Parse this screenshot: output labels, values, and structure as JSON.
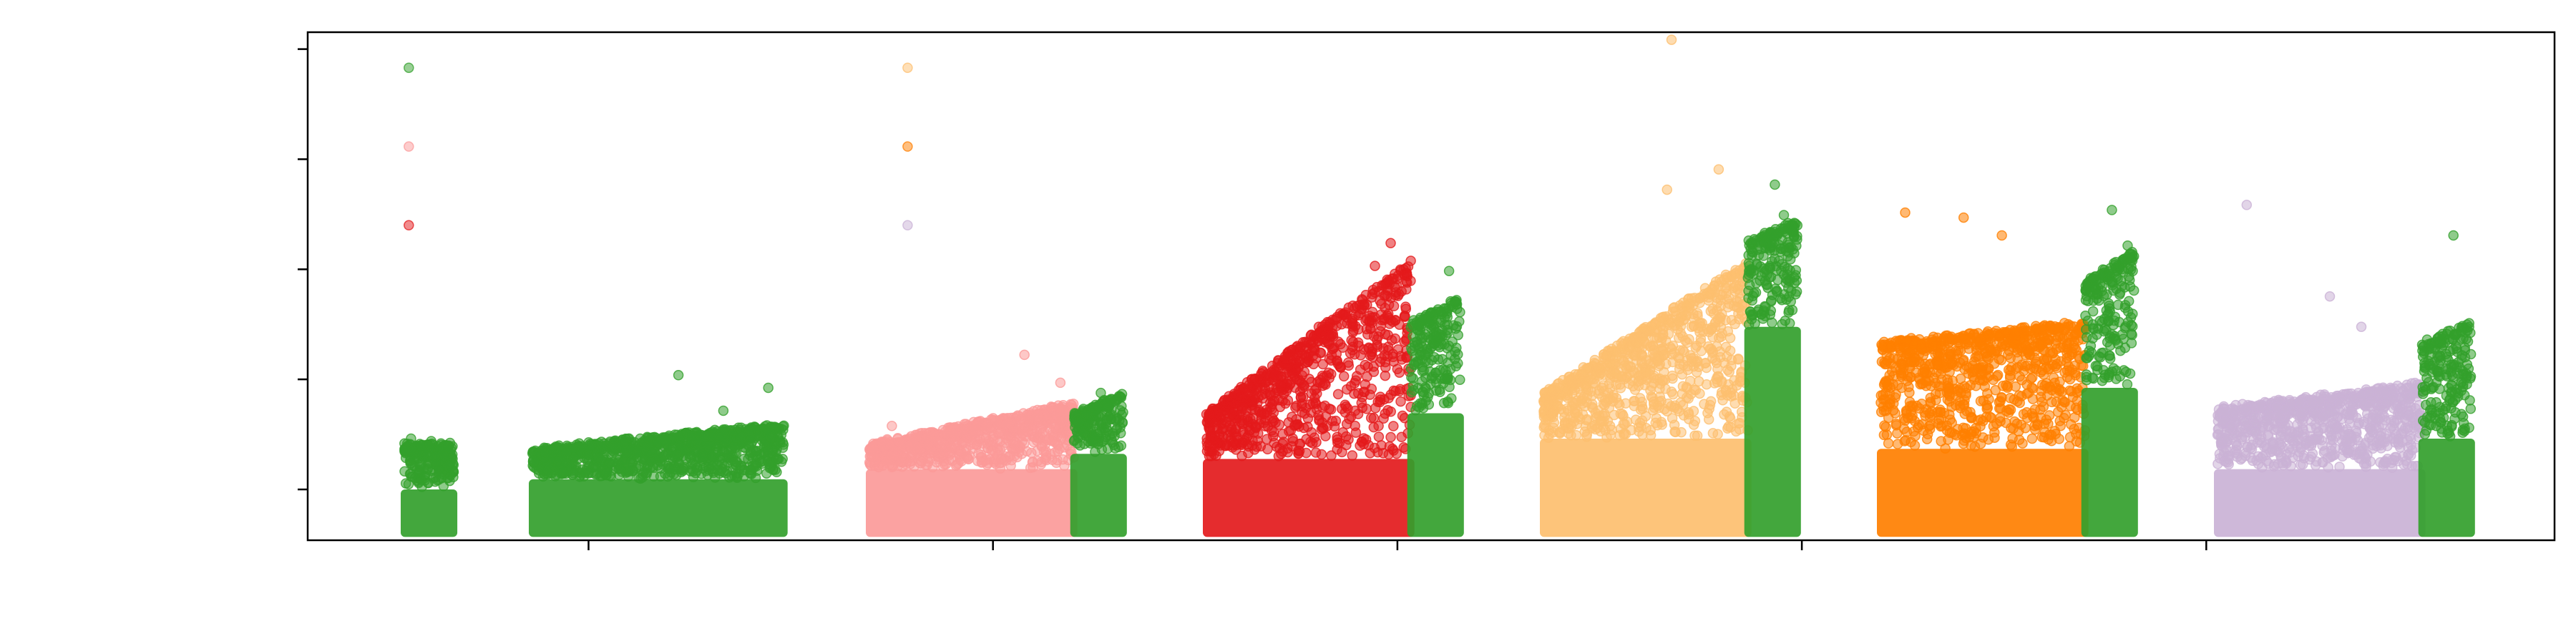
{
  "chart_data": {
    "type": "scatter",
    "title": "",
    "xlabel": "",
    "ylabel": "",
    "xlim": [
      0,
      100
    ],
    "ylim": [
      0,
      100
    ],
    "grid": false,
    "legend": "none",
    "x_ticks": [
      12.5,
      30.5,
      48.5,
      66.5,
      84.5
    ],
    "y_ticks": [
      10,
      31.67,
      53.33,
      75,
      96.67
    ],
    "x_tick_labels": [],
    "y_tick_labels": [],
    "colors": {
      "green": "#33a02c",
      "red": "#e31a1c",
      "pink": "#fb9a99",
      "light_orange": "#fdbf6f",
      "orange": "#ff7f00",
      "lavender": "#cab2d6"
    },
    "outliers": [
      {
        "x": 4.5,
        "y": 93,
        "color": "#33a02c"
      },
      {
        "x": 4.5,
        "y": 77.5,
        "color": "#fb9a99"
      },
      {
        "x": 4.5,
        "y": 62,
        "color": "#e31a1c"
      },
      {
        "x": 26.7,
        "y": 93,
        "color": "#fdbf6f"
      },
      {
        "x": 26.7,
        "y": 77.5,
        "color": "#ff7f00"
      },
      {
        "x": 26.7,
        "y": 62,
        "color": "#cab2d6"
      }
    ],
    "series": [
      {
        "color": "#33a02c",
        "x_range": [
          4.3,
          6.5
        ],
        "base_top": 10,
        "trend": [
          18,
          18
        ],
        "extremes": [
          [
            4.6,
            20
          ],
          [
            5.5,
            19.5
          ],
          [
            6.2,
            18.5
          ]
        ]
      },
      {
        "color": "#33a02c",
        "x_range": [
          10,
          21.2
        ],
        "base_top": 12,
        "trend": [
          17,
          22
        ],
        "extremes": [
          [
            16.5,
            32.5
          ],
          [
            18.5,
            25.5
          ],
          [
            20.5,
            30
          ]
        ]
      },
      {
        "color": "#fb9a99",
        "x_range": [
          25,
          34.1
        ],
        "base_top": 14,
        "trend": [
          18,
          26
        ],
        "extremes": [
          [
            31.9,
            36.5
          ],
          [
            26,
            22.5
          ],
          [
            33.5,
            31
          ]
        ]
      },
      {
        "color": "#33a02c",
        "x_range": [
          34.1,
          36.3
        ],
        "base_top": 17,
        "trend": [
          24,
          28
        ],
        "extremes": [
          [
            35.3,
            29
          ]
        ]
      },
      {
        "color": "#e31a1c",
        "x_range": [
          40,
          49.1
        ],
        "base_top": 16,
        "trend": [
          24,
          54
        ],
        "extremes": [
          [
            48.2,
            58.5
          ],
          [
            47.5,
            54
          ],
          [
            45,
            42
          ]
        ]
      },
      {
        "color": "#33a02c",
        "x_range": [
          49.1,
          51.3
        ],
        "base_top": 25,
        "trend": [
          42,
          47
        ],
        "extremes": [
          [
            50.8,
            53
          ]
        ]
      },
      {
        "color": "#fdbf6f",
        "x_range": [
          55,
          64.1
        ],
        "base_top": 20,
        "trend": [
          28,
          54
        ],
        "extremes": [
          [
            60.7,
            98.5
          ],
          [
            62.8,
            73
          ],
          [
            60.5,
            69
          ]
        ]
      },
      {
        "color": "#33a02c",
        "x_range": [
          64.1,
          66.3
        ],
        "base_top": 42,
        "trend": [
          58,
          62
        ],
        "extremes": [
          [
            65.3,
            70
          ],
          [
            65.7,
            64
          ]
        ]
      },
      {
        "color": "#ff7f00",
        "x_range": [
          70,
          79.1
        ],
        "base_top": 18,
        "trend": [
          38,
          42
        ],
        "extremes": [
          [
            71.1,
            64.5
          ],
          [
            73.7,
            63.5
          ],
          [
            75.4,
            60
          ]
        ]
      },
      {
        "color": "#33a02c",
        "x_range": [
          79.1,
          81.3
        ],
        "base_top": 30,
        "trend": [
          50,
          56
        ],
        "extremes": [
          [
            80.3,
            65
          ],
          [
            81,
            58
          ]
        ]
      },
      {
        "color": "#cab2d6",
        "x_range": [
          85,
          94.1
        ],
        "base_top": 14,
        "trend": [
          25,
          30
        ],
        "extremes": [
          [
            86.3,
            66
          ],
          [
            90,
            48
          ],
          [
            91.4,
            42
          ]
        ]
      },
      {
        "color": "#33a02c",
        "x_range": [
          94.1,
          96.3
        ],
        "base_top": 20,
        "trend": [
          38,
          42
        ],
        "extremes": [
          [
            95.5,
            60
          ]
        ]
      }
    ]
  }
}
